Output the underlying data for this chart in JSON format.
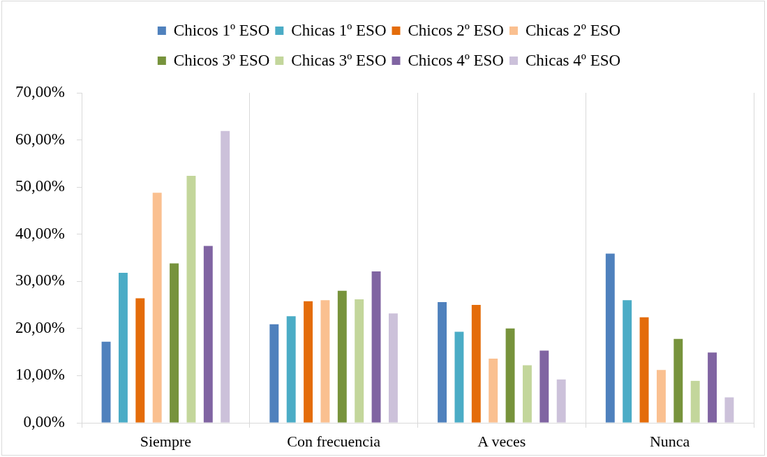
{
  "chart_data": {
    "type": "bar",
    "categories": [
      "Siempre",
      "Con frecuencia",
      "A veces",
      "Nunca"
    ],
    "series": [
      {
        "name": "Chicos 1º ESO",
        "color": "#4f81bd",
        "values": [
          17.2,
          20.9,
          25.6,
          35.9
        ]
      },
      {
        "name": "Chicas 1º ESO",
        "color": "#4bacc6",
        "values": [
          31.8,
          22.6,
          19.3,
          26.0
        ]
      },
      {
        "name": "Chicos 2º ESO",
        "color": "#e46c0a",
        "values": [
          26.4,
          25.8,
          25.0,
          22.4
        ]
      },
      {
        "name": "Chicas 2º ESO",
        "color": "#fac090",
        "values": [
          48.8,
          26.0,
          13.6,
          11.2
        ]
      },
      {
        "name": "Chicos 3º ESO",
        "color": "#77933c",
        "values": [
          33.8,
          28.0,
          20.0,
          17.8
        ]
      },
      {
        "name": "Chicas 3º ESO",
        "color": "#c3d69b",
        "values": [
          52.4,
          26.2,
          12.2,
          8.9
        ]
      },
      {
        "name": "Chicos 4º ESO",
        "color": "#8064a2",
        "values": [
          37.5,
          32.1,
          15.3,
          14.9
        ]
      },
      {
        "name": "Chicas 4º ESO",
        "color": "#ccc1da",
        "values": [
          61.9,
          23.2,
          9.2,
          5.4
        ]
      }
    ],
    "ylim": [
      0,
      70
    ],
    "yticks": [
      {
        "value": 0,
        "label": "0,00%"
      },
      {
        "value": 10,
        "label": "10,00%"
      },
      {
        "value": 20,
        "label": "20,00%"
      },
      {
        "value": 30,
        "label": "30,00%"
      },
      {
        "value": 40,
        "label": "40,00%"
      },
      {
        "value": 50,
        "label": "50,00%"
      },
      {
        "value": 60,
        "label": "60,00%"
      },
      {
        "value": 70,
        "label": "70,00%"
      }
    ],
    "grid": "x",
    "legend": "top"
  }
}
